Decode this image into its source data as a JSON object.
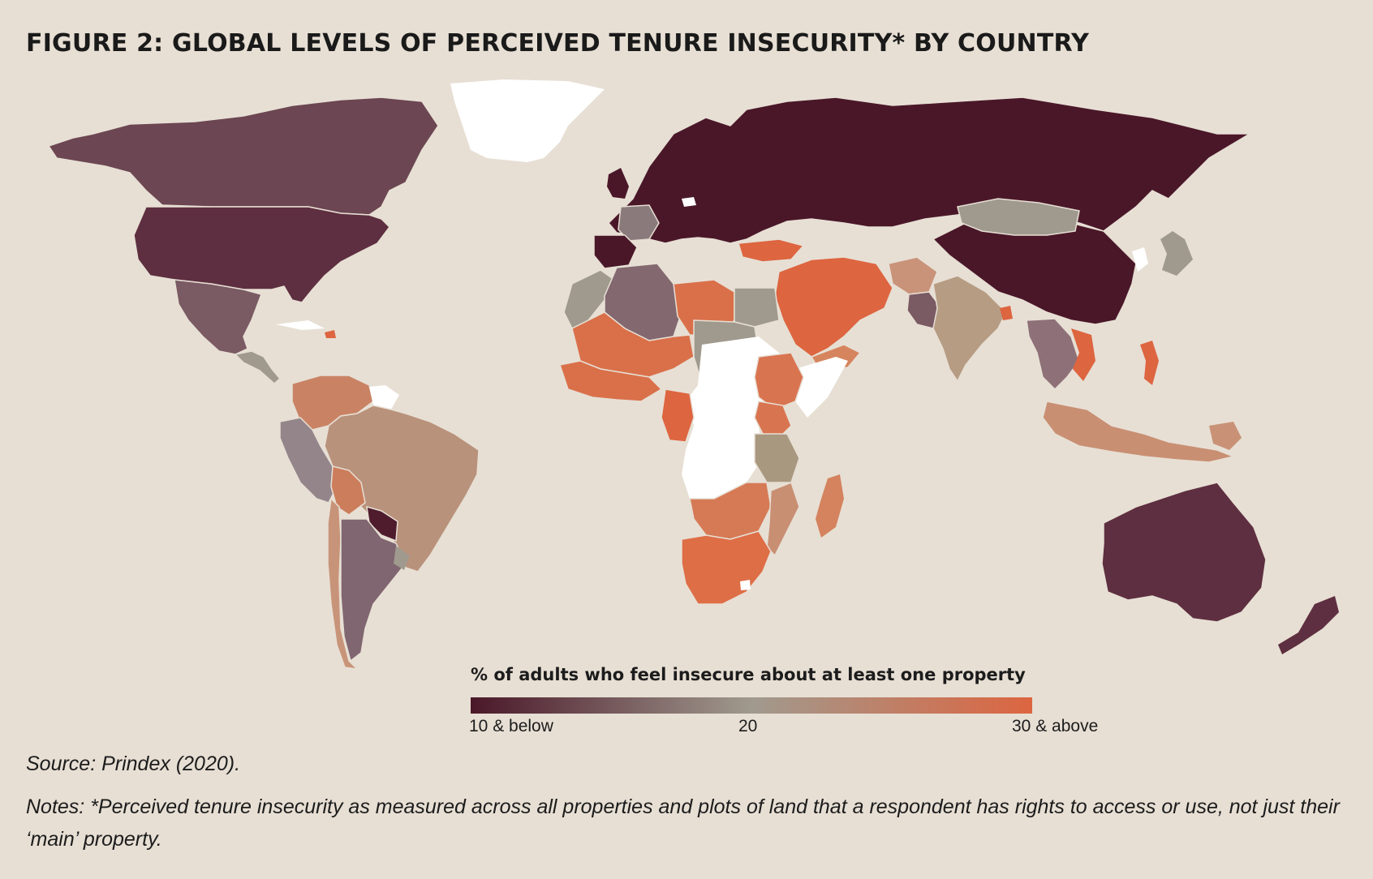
{
  "figure": {
    "title": "FIGURE 2: GLOBAL LEVELS OF PERCEIVED TENURE INSECURITY* BY COUNTRY",
    "source": "Source: Prindex (2020).",
    "notes": "Notes: *Perceived tenure insecurity as measured across all properties and plots of land that a respondent has rights to access or use, not just their ‘main’ property."
  },
  "legend": {
    "title": "% of adults who feel insecure about at least one property",
    "tick_low": "10 & below",
    "tick_mid": "20",
    "tick_high": "30 & above",
    "color_low": "#4a1729",
    "color_mid": "#a09a8e",
    "color_high": "#dd6540",
    "no_data_color": "#ffffff",
    "background_color": "#e7dfd4"
  },
  "regions": [
    {
      "name": "Canada",
      "level": "low-mid",
      "color": "#6c4652"
    },
    {
      "name": "United States",
      "level": "low",
      "color": "#5e2f40"
    },
    {
      "name": "Mexico",
      "level": "mid-low",
      "color": "#7a5a63"
    },
    {
      "name": "Greenland",
      "level": "no-data",
      "color": "#ffffff"
    },
    {
      "name": "Brazil",
      "level": "mid-high",
      "color": "#b9927c"
    },
    {
      "name": "Argentina",
      "level": "mid-low",
      "color": "#806670"
    },
    {
      "name": "Venezuela / Colombia",
      "level": "high-mid",
      "color": "#c98364"
    },
    {
      "name": "Bolivia",
      "level": "high-mid",
      "color": "#cc7d5b"
    },
    {
      "name": "Peru",
      "level": "mid",
      "color": "#93858a"
    },
    {
      "name": "Paraguay",
      "level": "low",
      "color": "#4f1c2e"
    },
    {
      "name": "Russia / Europe",
      "level": "low",
      "color": "#4a1729"
    },
    {
      "name": "China",
      "level": "low",
      "color": "#4a1729"
    },
    {
      "name": "Mongolia",
      "level": "mid",
      "color": "#a09a8e"
    },
    {
      "name": "Iran / Saudi Arabia / Turkey",
      "level": "high",
      "color": "#dd6540"
    },
    {
      "name": "India",
      "level": "mid-high",
      "color": "#b79c84"
    },
    {
      "name": "Southeast Asia",
      "level": "mixed",
      "color": "#c98f73"
    },
    {
      "name": "Australia",
      "level": "low",
      "color": "#5e2f40"
    },
    {
      "name": "Algeria",
      "level": "mid-low",
      "color": "#836870"
    },
    {
      "name": "Libya / Niger / Mali",
      "level": "high",
      "color": "#d9704a"
    },
    {
      "name": "Egypt / Sudan",
      "level": "mid",
      "color": "#a09a8e"
    },
    {
      "name": "Ethiopia",
      "level": "high",
      "color": "#d97450"
    },
    {
      "name": "Central Africa",
      "level": "no-data",
      "color": "#ffffff"
    },
    {
      "name": "Southern Africa",
      "level": "high",
      "color": "#de6e46"
    },
    {
      "name": "Madagascar",
      "level": "high-mid",
      "color": "#d4835e"
    }
  ]
}
